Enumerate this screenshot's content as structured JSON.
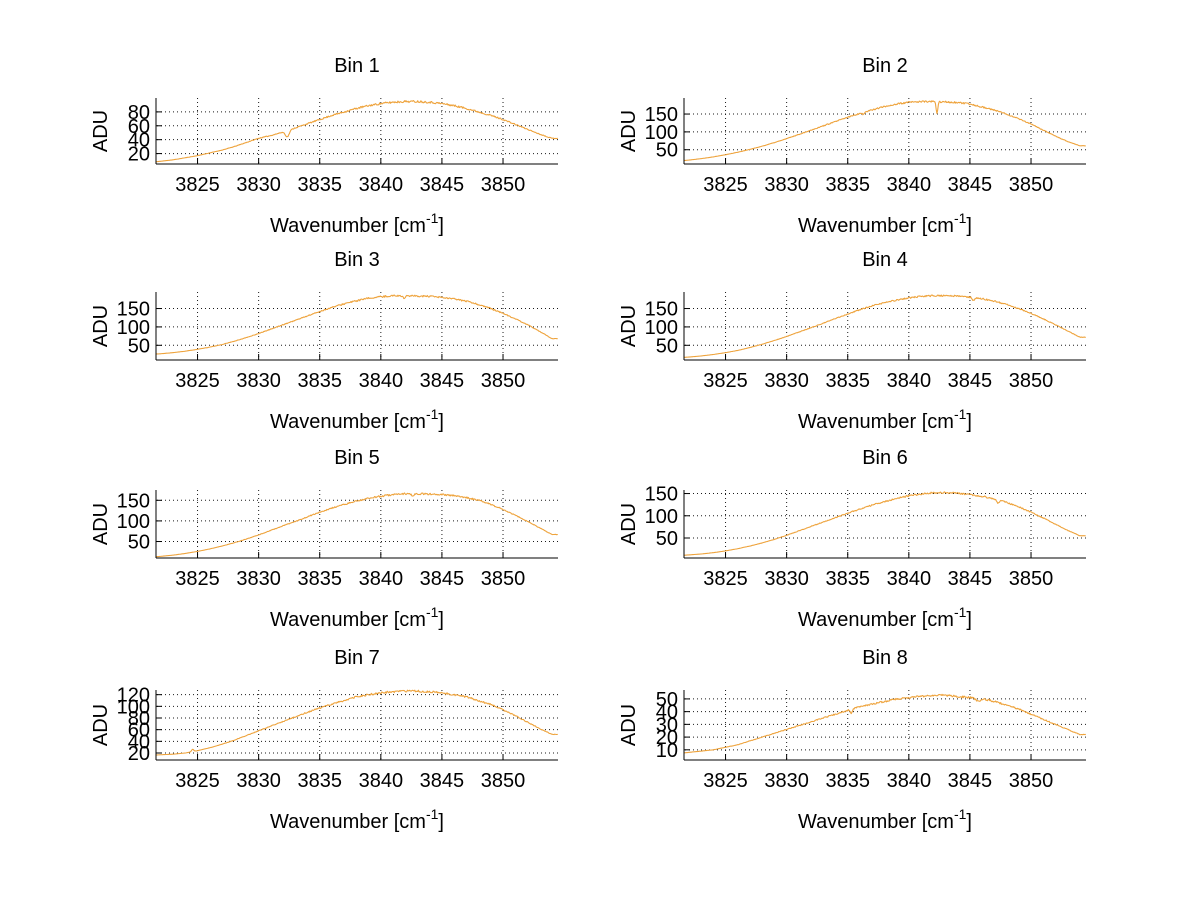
{
  "figure": {
    "background": "#ffffff",
    "curve_color": "#EEA33C",
    "grid_color": "#1a1a1a",
    "axis_color": "#000000",
    "text_color": "#000000",
    "xlabel": {
      "base": "Wavenumber [cm",
      "sup": "-1",
      "end": "]"
    }
  },
  "chart_data": [
    {
      "type": "line",
      "title": "Bin 1",
      "ylabel": "ADU",
      "xlabel": "Wavenumber [cm^-1]",
      "x_start": 3821,
      "x_step": 1,
      "values": [
        7,
        9,
        11,
        14,
        17,
        21,
        25,
        30,
        36,
        42,
        46,
        51,
        57,
        63,
        69,
        75,
        80,
        85,
        89,
        92,
        94,
        95,
        95,
        94,
        92,
        89,
        85,
        80,
        75,
        69,
        62,
        55,
        48,
        42
      ],
      "xticks": [
        3825,
        3830,
        3835,
        3840,
        3845,
        3850
      ],
      "yticks": [
        20,
        40,
        60,
        80
      ],
      "xlim": [
        3821.6,
        3854.5
      ],
      "ylim": [
        5,
        100
      ],
      "grid": true,
      "legend": null,
      "noise": 1.6,
      "seed": 11,
      "features": [
        {
          "x": 3832.35,
          "dy": -9,
          "w": 0.22
        }
      ]
    },
    {
      "type": "line",
      "title": "Bin 2",
      "ylabel": "ADU",
      "xlabel": "Wavenumber [cm^-1]",
      "x_start": 3821,
      "x_step": 1,
      "values": [
        18,
        21,
        25,
        30,
        36,
        43,
        51,
        60,
        70,
        81,
        93,
        105,
        117,
        129,
        141,
        152,
        162,
        171,
        178,
        183,
        185,
        185,
        184,
        182,
        178,
        170,
        161,
        150,
        137,
        122,
        105,
        88,
        73,
        61
      ],
      "xticks": [
        3825,
        3830,
        3835,
        3840,
        3845,
        3850
      ],
      "yticks": [
        50,
        100,
        150
      ],
      "xlim": [
        3821.6,
        3854.5
      ],
      "ylim": [
        10,
        195
      ],
      "grid": true,
      "legend": null,
      "noise": 2.5,
      "seed": 22,
      "features": [
        {
          "x": 3842.3,
          "dy": -32,
          "w": 0.1
        },
        {
          "x": 3836.3,
          "dy": -6,
          "w": 0.12
        }
      ]
    },
    {
      "type": "line",
      "title": "Bin 3",
      "ylabel": "ADU",
      "xlabel": "Wavenumber [cm^-1]",
      "x_start": 3821,
      "x_step": 1,
      "values": [
        25,
        27,
        30,
        34,
        39,
        45,
        52,
        61,
        71,
        82,
        94,
        106,
        118,
        130,
        142,
        153,
        163,
        171,
        178,
        182,
        185,
        185,
        184,
        183,
        180,
        176,
        170,
        161,
        150,
        137,
        122,
        106,
        88,
        68
      ],
      "xticks": [
        3825,
        3830,
        3835,
        3840,
        3845,
        3850
      ],
      "yticks": [
        50,
        100,
        150
      ],
      "xlim": [
        3821.6,
        3854.5
      ],
      "ylim": [
        10,
        195
      ],
      "grid": true,
      "legend": null,
      "noise": 2.5,
      "seed": 33,
      "features": [
        {
          "x": 3841.9,
          "dy": -8,
          "w": 0.12
        }
      ]
    },
    {
      "type": "line",
      "title": "Bin 4",
      "ylabel": "ADU",
      "xlabel": "Wavenumber [cm^-1]",
      "x_start": 3821,
      "x_step": 1,
      "values": [
        16,
        18,
        21,
        25,
        30,
        36,
        44,
        53,
        63,
        74,
        86,
        98,
        110,
        123,
        135,
        147,
        157,
        166,
        173,
        179,
        183,
        185,
        185,
        184,
        181,
        177,
        170,
        161,
        150,
        137,
        122,
        106,
        89,
        72
      ],
      "xticks": [
        3825,
        3830,
        3835,
        3840,
        3845,
        3850
      ],
      "yticks": [
        50,
        100,
        150
      ],
      "xlim": [
        3821.6,
        3854.5
      ],
      "ylim": [
        10,
        195
      ],
      "grid": true,
      "legend": null,
      "noise": 2.2,
      "seed": 44,
      "features": [
        {
          "x": 3845.3,
          "dy": -8,
          "w": 0.15
        }
      ]
    },
    {
      "type": "line",
      "title": "Bin 5",
      "ylabel": "ADU",
      "xlabel": "Wavenumber [cm^-1]",
      "x_start": 3821,
      "x_step": 1,
      "values": [
        12,
        14,
        17,
        21,
        26,
        32,
        39,
        47,
        56,
        66,
        77,
        88,
        99,
        110,
        121,
        131,
        140,
        148,
        155,
        160,
        164,
        166,
        166,
        165,
        164,
        161,
        157,
        150,
        140,
        128,
        114,
        99,
        83,
        67
      ],
      "xticks": [
        3825,
        3830,
        3835,
        3840,
        3845,
        3850
      ],
      "yticks": [
        50,
        100,
        150
      ],
      "xlim": [
        3821.6,
        3854.5
      ],
      "ylim": [
        10,
        175
      ],
      "grid": true,
      "legend": null,
      "noise": 2.2,
      "seed": 55,
      "features": [
        {
          "x": 3842.6,
          "dy": -5,
          "w": 0.15
        }
      ]
    },
    {
      "type": "line",
      "title": "Bin 6",
      "ylabel": "ADU",
      "xlabel": "Wavenumber [cm^-1]",
      "x_start": 3821,
      "x_step": 1,
      "values": [
        10,
        12,
        14,
        17,
        21,
        26,
        32,
        39,
        47,
        56,
        66,
        76,
        86,
        96,
        106,
        115,
        124,
        132,
        139,
        145,
        149,
        152,
        152,
        151,
        148,
        144,
        138,
        130,
        120,
        108,
        95,
        81,
        67,
        55
      ],
      "xticks": [
        3825,
        3830,
        3835,
        3840,
        3845,
        3850
      ],
      "yticks": [
        50,
        100,
        150
      ],
      "xlim": [
        3821.6,
        3854.5
      ],
      "ylim": [
        5,
        158
      ],
      "grid": true,
      "legend": null,
      "noise": 2.0,
      "seed": 66,
      "features": [
        {
          "x": 3847.3,
          "dy": -7,
          "w": 0.15
        }
      ]
    },
    {
      "type": "line",
      "title": "Bin 7",
      "ylabel": "ADU",
      "xlabel": "Wavenumber [cm^-1]",
      "x_start": 3821,
      "x_step": 1,
      "values": [
        16,
        17,
        18,
        20,
        24,
        29,
        35,
        42,
        50,
        58,
        66,
        74,
        82,
        90,
        97,
        104,
        110,
        116,
        120,
        123,
        125,
        126,
        126,
        125,
        123,
        120,
        116,
        110,
        103,
        94,
        84,
        73,
        62,
        52
      ],
      "xticks": [
        3825,
        3830,
        3835,
        3840,
        3845,
        3850
      ],
      "yticks": [
        20,
        40,
        60,
        80,
        100,
        120
      ],
      "xlim": [
        3821.6,
        3854.5
      ],
      "ylim": [
        8,
        128
      ],
      "grid": true,
      "legend": null,
      "noise": 1.8,
      "seed": 77,
      "features": [
        {
          "x": 3824.6,
          "dy": 4,
          "w": 0.12
        }
      ]
    },
    {
      "type": "line",
      "title": "Bin 8",
      "ylabel": "ADU",
      "xlabel": "Wavenumber [cm^-1]",
      "x_start": 3821,
      "x_step": 1,
      "values": [
        7,
        8,
        9,
        10,
        12,
        14,
        17,
        20,
        23,
        26,
        29,
        32,
        35,
        38,
        41,
        44,
        46,
        48,
        50,
        51,
        52,
        53,
        53,
        52,
        51,
        50,
        48,
        45,
        42,
        38,
        34,
        30,
        26,
        22
      ],
      "xticks": [
        3825,
        3830,
        3835,
        3840,
        3845,
        3850
      ],
      "yticks": [
        10,
        20,
        30,
        40,
        50
      ],
      "xlim": [
        3821.6,
        3854.5
      ],
      "ylim": [
        2,
        57
      ],
      "grid": true,
      "legend": null,
      "noise": 0.9,
      "seed": 88,
      "features": [
        {
          "x": 3835.3,
          "dy": -3,
          "w": 0.12
        },
        {
          "x": 3845.7,
          "dy": -2.5,
          "w": 0.25
        }
      ]
    }
  ]
}
